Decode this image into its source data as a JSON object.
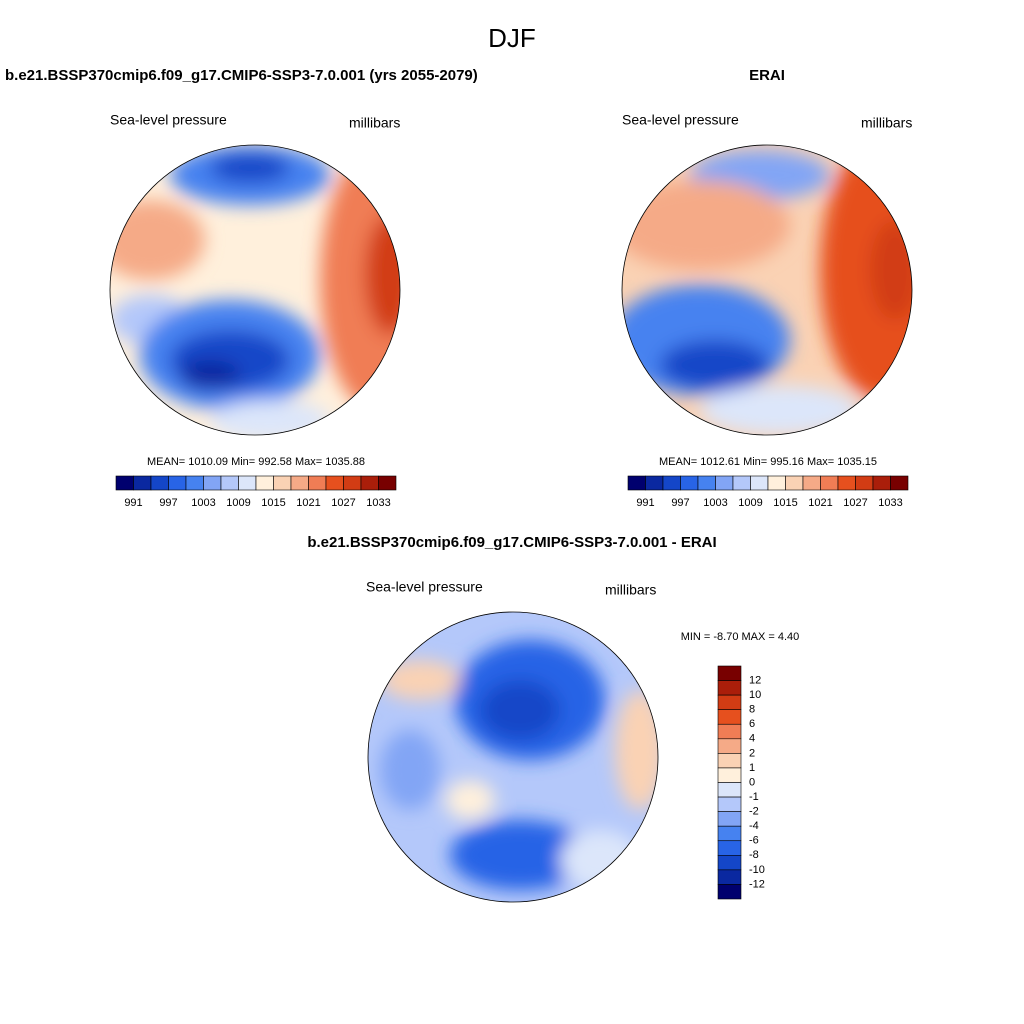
{
  "title": "DJF",
  "panels": [
    {
      "title": "b.e21.BSSP370cmip6.f09_g17.CMIP6-SSP3-7.0.001 (yrs 2055-2079)",
      "left_label": "Sea-level pressure",
      "right_label": "millibars",
      "stats": "MEAN= 1010.09  Min= 992.58  Max= 1035.88",
      "colorbar": {
        "colors": [
          "#00006e",
          "#0a28a0",
          "#1446c8",
          "#2864e6",
          "#4682f0",
          "#82a5f5",
          "#b4c8fa",
          "#dce6fa",
          "#fff0dc",
          "#fad2b4",
          "#f5aa87",
          "#f07d55",
          "#e6501e",
          "#d23c14",
          "#aa1e0a",
          "#780000"
        ],
        "labels": [
          991,
          997,
          1003,
          1009,
          1015,
          1021,
          1027,
          1033
        ]
      }
    },
    {
      "title": "ERAI",
      "left_label": "Sea-level pressure",
      "right_label": "millibars",
      "stats": "MEAN= 1012.61  Min= 995.16  Max= 1035.15",
      "colorbar": {
        "colors": [
          "#00006e",
          "#0a28a0",
          "#1446c8",
          "#2864e6",
          "#4682f0",
          "#82a5f5",
          "#b4c8fa",
          "#dce6fa",
          "#fff0dc",
          "#fad2b4",
          "#f5aa87",
          "#f07d55",
          "#e6501e",
          "#d23c14",
          "#aa1e0a",
          "#780000"
        ],
        "labels": [
          991,
          997,
          1003,
          1009,
          1015,
          1021,
          1027,
          1033
        ]
      }
    },
    {
      "title": "b.e21.BSSP370cmip6.f09_g17.CMIP6-SSP3-7.0.001 - ERAI",
      "left_label": "Sea-level pressure",
      "right_label": "millibars",
      "stats": "MIN =  -8.70 MAX =   4.40",
      "colorbar": {
        "colors": [
          "#780000",
          "#aa1e0a",
          "#d23c14",
          "#e6501e",
          "#f07d55",
          "#f5aa87",
          "#fad2b4",
          "#fff0dc",
          "#dce6fa",
          "#b4c8fa",
          "#82a5f5",
          "#4682f0",
          "#2864e6",
          "#1446c8",
          "#0a28a0",
          "#00006e"
        ],
        "labels": [
          12,
          10,
          8,
          6,
          4,
          2,
          1,
          0,
          -1,
          -2,
          -4,
          -6,
          -8,
          -10,
          -12
        ]
      }
    }
  ]
}
